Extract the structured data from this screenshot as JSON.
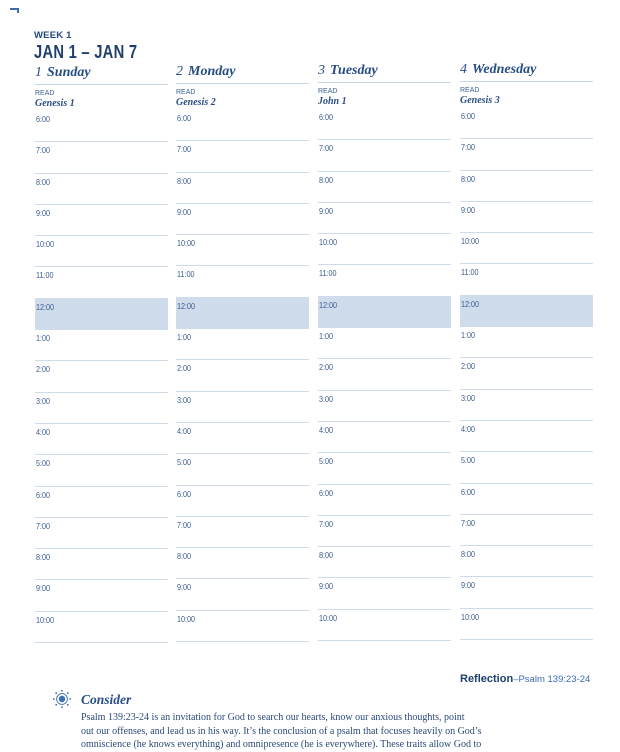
{
  "header": {
    "week_label": "WEEK 1",
    "date_range": "JAN 1 – JAN 7"
  },
  "days": [
    {
      "number": "1",
      "name": "Sunday",
      "read_label": "READ",
      "reading": "Genesis 1",
      "slots": [
        "6:00",
        "7:00",
        "8:00",
        "9:00",
        "10:00",
        "11:00",
        "12:00",
        "1:00",
        "2:00",
        "3:00",
        "4:00",
        "5:00",
        "6:00",
        "7:00",
        "8:00",
        "9:00",
        "10:00"
      ]
    },
    {
      "number": "2",
      "name": "Monday",
      "read_label": "READ",
      "reading": "Genesis 2",
      "slots": [
        "6:00",
        "7:00",
        "8:00",
        "9:00",
        "10:00",
        "11:00",
        "12:00",
        "1:00",
        "2:00",
        "3:00",
        "4:00",
        "5:00",
        "6:00",
        "7:00",
        "8:00",
        "9:00",
        "10:00"
      ]
    },
    {
      "number": "3",
      "name": "Tuesday",
      "read_label": "READ",
      "reading": "John 1",
      "slots": [
        "6:00",
        "7:00",
        "8:00",
        "9:00",
        "10:00",
        "11:00",
        "12:00",
        "1:00",
        "2:00",
        "3:00",
        "4:00",
        "5:00",
        "6:00",
        "7:00",
        "8:00",
        "9:00",
        "10:00"
      ]
    },
    {
      "number": "4",
      "name": "Wednesday",
      "read_label": "READ",
      "reading": "Genesis 3",
      "slots": [
        "6:00",
        "7:00",
        "8:00",
        "9:00",
        "10:00",
        "11:00",
        "12:00",
        "1:00",
        "2:00",
        "3:00",
        "4:00",
        "5:00",
        "6:00",
        "7:00",
        "8:00",
        "9:00",
        "10:00"
      ]
    }
  ],
  "highlight_slot": "12:00",
  "colors": {
    "highlight": "#cfdcec",
    "accent": "#3d6db0",
    "text": "#1f3f6e"
  },
  "reflection": {
    "label": "Reflection",
    "reference": "–Psalm 139:23-24"
  },
  "consider": {
    "icon": "sun-icon",
    "title": "Consider",
    "lines": [
      "Psalm 139:23-24 is an invitation for God to search our hearts, know our anxious thoughts, point",
      "out our offenses, and lead us in his way. It’s the conclusion of a psalm that focuses heavily on God’s",
      "omniscience (he knows everything) and omnipresence (he is everywhere). These traits allow God to"
    ]
  }
}
